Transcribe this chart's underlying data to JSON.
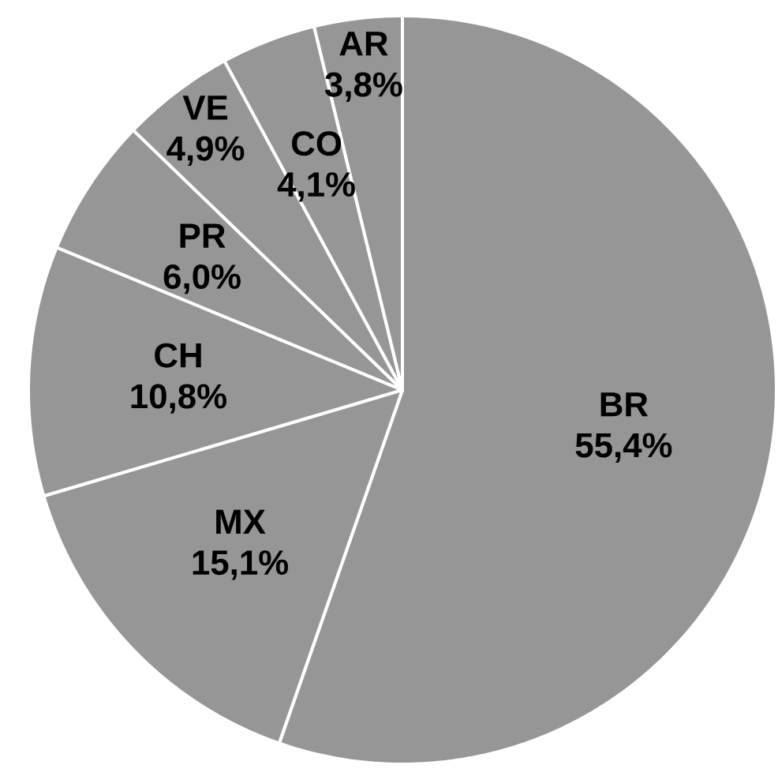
{
  "chart_data": {
    "type": "pie",
    "categories": [
      "BR",
      "MX",
      "CH",
      "PR",
      "VE",
      "CO",
      "AR"
    ],
    "values": [
      55.4,
      15.1,
      10.8,
      6.0,
      4.9,
      4.1,
      3.8
    ],
    "value_labels": [
      "55,4%",
      "15,1%",
      "10,8%",
      "6,0%",
      "4,9%",
      "4,1%",
      "3,8%"
    ],
    "colors": [
      "#969696",
      "#969696",
      "#969696",
      "#969696",
      "#969696",
      "#969696",
      "#969696"
    ]
  }
}
